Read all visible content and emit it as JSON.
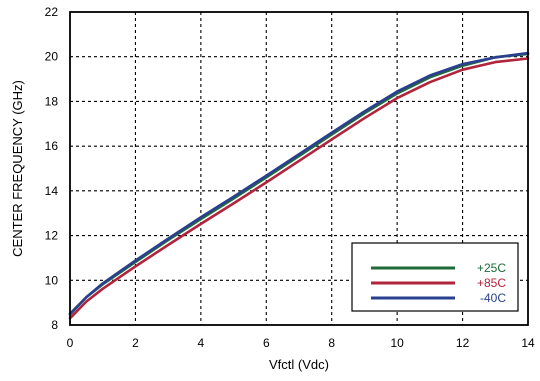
{
  "chart_data": {
    "type": "line",
    "title": "",
    "xlabel": "Vfctl (Vdc)",
    "ylabel": "CENTER FREQUENCY (GHz)",
    "xlim": [
      0,
      14
    ],
    "ylim": [
      8,
      22
    ],
    "xticks": [
      0,
      2,
      4,
      6,
      8,
      10,
      12,
      14
    ],
    "yticks": [
      8,
      10,
      12,
      14,
      16,
      18,
      20,
      22
    ],
    "grid": true,
    "legend_position": "bottom-right",
    "x": [
      0,
      0.5,
      1,
      2,
      3,
      4,
      5,
      6,
      7,
      8,
      9,
      10,
      11,
      12,
      13,
      14
    ],
    "series": [
      {
        "name": "+25C",
        "color": "#1e6b3a",
        "values": [
          8.5,
          9.25,
          9.82,
          10.82,
          11.8,
          12.74,
          13.66,
          14.6,
          15.56,
          16.52,
          17.47,
          18.36,
          19.08,
          19.6,
          19.98,
          20.12
        ]
      },
      {
        "name": "+85C",
        "color": "#b0243c",
        "values": [
          8.3,
          9.05,
          9.62,
          10.62,
          11.58,
          12.52,
          13.44,
          14.38,
          15.34,
          16.3,
          17.25,
          18.15,
          18.86,
          19.42,
          19.76,
          19.92
        ]
      },
      {
        "name": "-40C",
        "color": "#2a3f8f",
        "values": [
          8.48,
          9.25,
          9.86,
          10.88,
          11.86,
          12.82,
          13.74,
          14.68,
          15.64,
          16.6,
          17.55,
          18.44,
          19.16,
          19.67,
          19.97,
          20.16
        ]
      }
    ]
  }
}
